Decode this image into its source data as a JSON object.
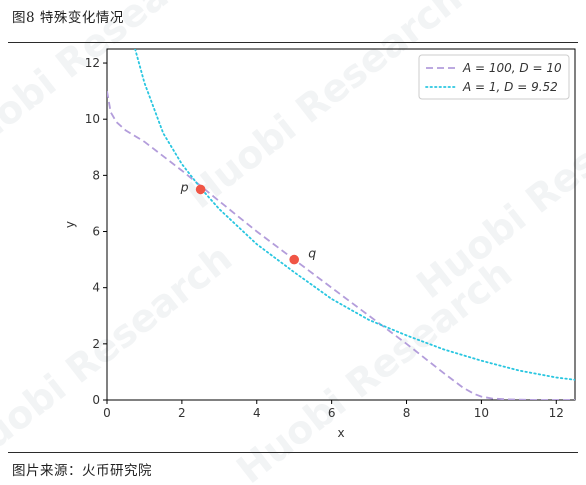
{
  "figure": {
    "title": "图8  特殊变化情况",
    "source": "图片来源：火币研究院",
    "watermark": "Huobi Research"
  },
  "colors": {
    "series_a": "#b39ddb",
    "series_b": "#29c6e0",
    "points": "#f05545",
    "watermark": "#9aa6b2"
  },
  "chart_data": {
    "type": "line",
    "xlabel": "x",
    "ylabel": "y",
    "xlim": [
      0,
      12.5
    ],
    "ylim": [
      0,
      12.5
    ],
    "xticks": [
      0,
      2,
      4,
      6,
      8,
      10,
      12
    ],
    "yticks": [
      0,
      2,
      4,
      6,
      8,
      10,
      12
    ],
    "grid": false,
    "legend_position": "top-right",
    "series": [
      {
        "name": "A = 100, D = 10",
        "style": "dashed",
        "x": [
          0.0,
          0.1,
          0.25,
          0.5,
          1.0,
          2.0,
          3.0,
          4.0,
          5.0,
          6.0,
          7.0,
          8.0,
          9.0,
          9.5,
          9.8,
          10.0,
          10.3,
          10.7,
          11.5,
          12.5
        ],
        "y": [
          11.0,
          10.25,
          9.9,
          9.6,
          9.2,
          8.17,
          7.08,
          6.0,
          5.0,
          4.0,
          3.0,
          2.0,
          0.95,
          0.45,
          0.22,
          0.12,
          0.05,
          0.02,
          0.0,
          0.0
        ]
      },
      {
        "name": "A = 1, D = 9.52",
        "style": "dotted",
        "x": [
          0.75,
          1.0,
          1.5,
          2.0,
          2.5,
          3.0,
          4.0,
          5.0,
          6.0,
          7.0,
          8.0,
          9.0,
          10.0,
          11.0,
          12.0,
          12.5
        ],
        "y": [
          12.5,
          11.3,
          9.5,
          8.4,
          7.55,
          6.8,
          5.55,
          4.55,
          3.6,
          2.85,
          2.3,
          1.8,
          1.4,
          1.05,
          0.8,
          0.72
        ]
      }
    ],
    "points": [
      {
        "label": "p",
        "x": 2.5,
        "y": 7.5
      },
      {
        "label": "q",
        "x": 5.0,
        "y": 5.0
      }
    ]
  }
}
